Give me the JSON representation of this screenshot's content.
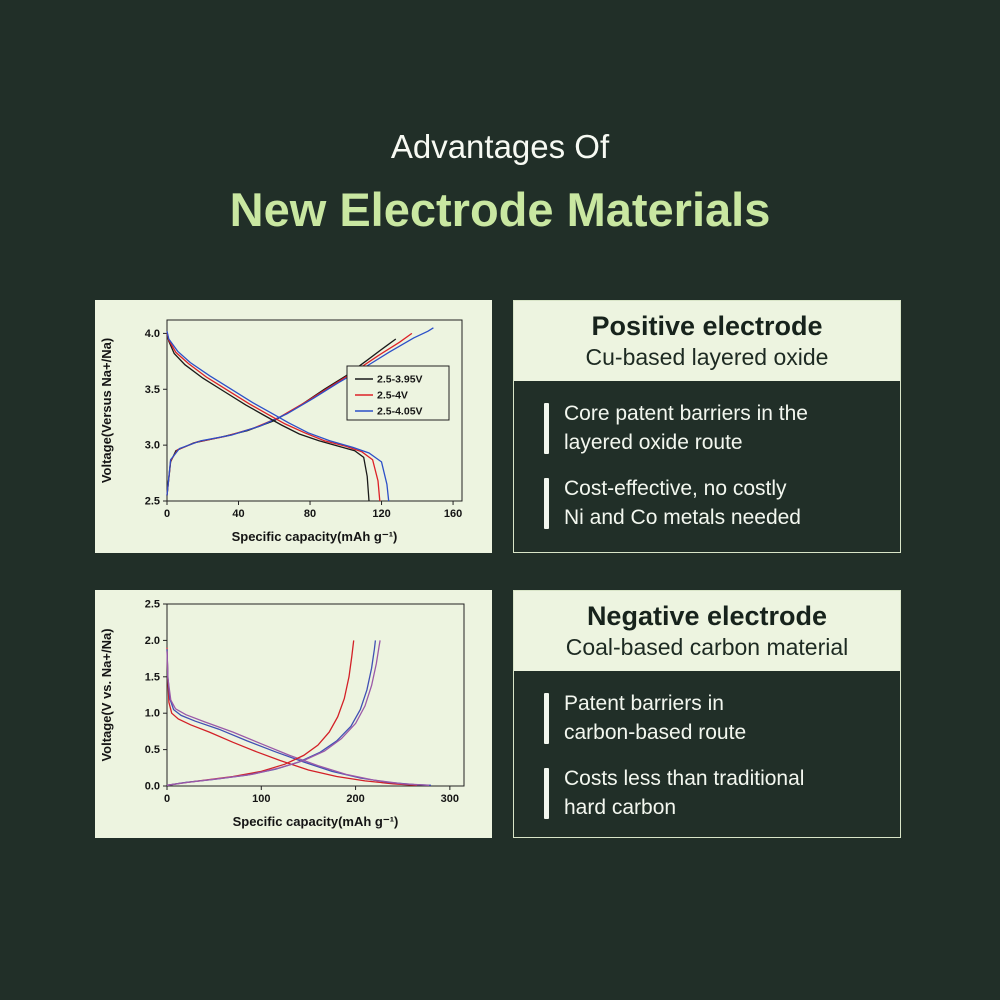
{
  "header": {
    "subtitle": "Advantages Of",
    "title": "New Electrode Materials"
  },
  "colors": {
    "background": "#212f28",
    "panel_cream": "#edf4e0",
    "accent_green": "#c9e7a1",
    "text_light": "#f3f7ef",
    "text_dark": "#17231c"
  },
  "positive": {
    "title": "Positive electrode",
    "subtitle": "Cu-based layered oxide",
    "bullets": [
      "Core patent barriers in the\nlayered oxide route",
      "Cost-effective, no costly\nNi and Co metals needed"
    ]
  },
  "negative": {
    "title": "Negative electrode",
    "subtitle": "Coal-based carbon material",
    "bullets": [
      "Patent barriers in\ncarbon-based route",
      "Costs less than traditional\nhard carbon"
    ]
  },
  "chart_data": [
    {
      "type": "line",
      "title": "",
      "xlabel": "Specific capacity(mAh g⁻¹)",
      "ylabel": "Voltage(Versus Na+/Na)",
      "xlim": [
        0,
        165
      ],
      "ylim": [
        2.5,
        4.12
      ],
      "grid": false,
      "legend_position": "center-right",
      "xticks": [
        {
          "v": 0,
          "label": "0"
        },
        {
          "v": 40,
          "label": "40"
        },
        {
          "v": 80,
          "label": "80"
        },
        {
          "v": 120,
          "label": "120"
        },
        {
          "v": 160,
          "label": "160"
        }
      ],
      "yticks": [
        {
          "v": 2.5,
          "label": "2.5"
        },
        {
          "v": 3.0,
          "label": "3.0"
        },
        {
          "v": 3.5,
          "label": "3.5"
        },
        {
          "v": 4.0,
          "label": "4.0"
        }
      ],
      "legend": [
        {
          "label": "2.5-3.95V",
          "color": "#1a1a1a"
        },
        {
          "label": "2.5-4V",
          "color": "#dd2127"
        },
        {
          "label": "2.5-4.05V",
          "color": "#2c50c8"
        }
      ],
      "series": [
        {
          "name": "2.5-3.95V-charge",
          "color": "#1a1a1a",
          "points": [
            [
              0,
              2.55
            ],
            [
              2,
              2.85
            ],
            [
              5,
              2.95
            ],
            [
              15,
              3.02
            ],
            [
              30,
              3.07
            ],
            [
              45,
              3.13
            ],
            [
              60,
              3.22
            ],
            [
              75,
              3.36
            ],
            [
              88,
              3.5
            ],
            [
              100,
              3.62
            ],
            [
              112,
              3.76
            ],
            [
              122,
              3.88
            ],
            [
              128,
              3.95
            ]
          ]
        },
        {
          "name": "2.5-4V-charge",
          "color": "#dd2127",
          "points": [
            [
              0,
              2.55
            ],
            [
              2,
              2.86
            ],
            [
              6,
              2.96
            ],
            [
              17,
              3.03
            ],
            [
              33,
              3.08
            ],
            [
              48,
              3.15
            ],
            [
              63,
              3.25
            ],
            [
              78,
              3.39
            ],
            [
              92,
              3.53
            ],
            [
              105,
              3.66
            ],
            [
              118,
              3.8
            ],
            [
              130,
              3.92
            ],
            [
              137,
              4.0
            ]
          ]
        },
        {
          "name": "2.5-4.05V-charge",
          "color": "#2c50c8",
          "points": [
            [
              0,
              2.55
            ],
            [
              2,
              2.87
            ],
            [
              7,
              2.97
            ],
            [
              19,
              3.04
            ],
            [
              36,
              3.09
            ],
            [
              52,
              3.17
            ],
            [
              67,
              3.28
            ],
            [
              82,
              3.42
            ],
            [
              96,
              3.56
            ],
            [
              110,
              3.69
            ],
            [
              124,
              3.83
            ],
            [
              138,
              3.96
            ],
            [
              146,
              4.02
            ],
            [
              149,
              4.05
            ]
          ]
        },
        {
          "name": "2.5-3.95V-discharge",
          "color": "#1a1a1a",
          "points": [
            [
              0,
              4.0
            ],
            [
              1,
              3.93
            ],
            [
              4,
              3.82
            ],
            [
              10,
              3.72
            ],
            [
              20,
              3.6
            ],
            [
              32,
              3.48
            ],
            [
              44,
              3.36
            ],
            [
              54,
              3.27
            ],
            [
              64,
              3.18
            ],
            [
              74,
              3.1
            ],
            [
              85,
              3.04
            ],
            [
              96,
              2.99
            ],
            [
              105,
              2.95
            ],
            [
              110,
              2.89
            ],
            [
              112,
              2.72
            ],
            [
              113,
              2.5
            ]
          ]
        },
        {
          "name": "2.5-4V-discharge",
          "color": "#dd2127",
          "points": [
            [
              0,
              4.01
            ],
            [
              1,
              3.94
            ],
            [
              5,
              3.83
            ],
            [
              12,
              3.73
            ],
            [
              22,
              3.61
            ],
            [
              34,
              3.49
            ],
            [
              46,
              3.37
            ],
            [
              56,
              3.28
            ],
            [
              66,
              3.19
            ],
            [
              77,
              3.11
            ],
            [
              88,
              3.04
            ],
            [
              100,
              2.99
            ],
            [
              109,
              2.94
            ],
            [
              115,
              2.87
            ],
            [
              118,
              2.68
            ],
            [
              119,
              2.5
            ]
          ]
        },
        {
          "name": "2.5-4.05V-discharge",
          "color": "#2c50c8",
          "points": [
            [
              0,
              4.02
            ],
            [
              1,
              3.95
            ],
            [
              6,
              3.84
            ],
            [
              13,
              3.74
            ],
            [
              24,
              3.62
            ],
            [
              36,
              3.5
            ],
            [
              48,
              3.38
            ],
            [
              58,
              3.29
            ],
            [
              68,
              3.2
            ],
            [
              79,
              3.11
            ],
            [
              91,
              3.04
            ],
            [
              104,
              2.98
            ],
            [
              113,
              2.93
            ],
            [
              120,
              2.85
            ],
            [
              123,
              2.65
            ],
            [
              124,
              2.5
            ]
          ]
        }
      ]
    },
    {
      "type": "line",
      "title": "",
      "xlabel": "Specific capacity(mAh g⁻¹)",
      "ylabel": "Voltage(V vs. Na+/Na)",
      "xlim": [
        0,
        315
      ],
      "ylim": [
        0,
        2.5
      ],
      "grid": false,
      "xticks": [
        {
          "v": 0,
          "label": "0"
        },
        {
          "v": 100,
          "label": "100"
        },
        {
          "v": 200,
          "label": "200"
        },
        {
          "v": 300,
          "label": "300"
        }
      ],
      "yticks": [
        {
          "v": 0.0,
          "label": "0.0"
        },
        {
          "v": 0.5,
          "label": "0.5"
        },
        {
          "v": 1.0,
          "label": "1.0"
        },
        {
          "v": 1.5,
          "label": "1.5"
        },
        {
          "v": 2.0,
          "label": "2.0"
        },
        {
          "v": 2.5,
          "label": "2.5"
        }
      ],
      "series": [
        {
          "name": "red-discharge",
          "color": "#d32027",
          "points": [
            [
              0,
              1.9
            ],
            [
              1,
              1.45
            ],
            [
              2,
              1.15
            ],
            [
              5,
              1.0
            ],
            [
              12,
              0.92
            ],
            [
              25,
              0.84
            ],
            [
              45,
              0.74
            ],
            [
              70,
              0.6
            ],
            [
              95,
              0.47
            ],
            [
              120,
              0.35
            ],
            [
              150,
              0.22
            ],
            [
              180,
              0.13
            ],
            [
              210,
              0.07
            ],
            [
              240,
              0.03
            ],
            [
              265,
              0.01
            ]
          ]
        },
        {
          "name": "blue-discharge",
          "color": "#4050b4",
          "points": [
            [
              0,
              1.88
            ],
            [
              1,
              1.5
            ],
            [
              3,
              1.2
            ],
            [
              7,
              1.05
            ],
            [
              15,
              0.97
            ],
            [
              30,
              0.89
            ],
            [
              55,
              0.78
            ],
            [
              85,
              0.62
            ],
            [
              115,
              0.47
            ],
            [
              145,
              0.33
            ],
            [
              175,
              0.2
            ],
            [
              205,
              0.11
            ],
            [
              235,
              0.05
            ],
            [
              262,
              0.02
            ],
            [
              280,
              0.01
            ]
          ]
        },
        {
          "name": "purple-discharge",
          "color": "#9b59a8",
          "points": [
            [
              0,
              1.85
            ],
            [
              1,
              1.48
            ],
            [
              4,
              1.18
            ],
            [
              9,
              1.06
            ],
            [
              20,
              0.98
            ],
            [
              40,
              0.88
            ],
            [
              70,
              0.74
            ],
            [
              100,
              0.58
            ],
            [
              130,
              0.42
            ],
            [
              160,
              0.28
            ],
            [
              190,
              0.16
            ],
            [
              220,
              0.08
            ],
            [
              250,
              0.03
            ],
            [
              278,
              0.01
            ]
          ]
        },
        {
          "name": "red-charge",
          "color": "#d32027",
          "points": [
            [
              0,
              0.01
            ],
            [
              15,
              0.04
            ],
            [
              40,
              0.08
            ],
            [
              70,
              0.13
            ],
            [
              100,
              0.2
            ],
            [
              125,
              0.3
            ],
            [
              145,
              0.42
            ],
            [
              160,
              0.56
            ],
            [
              172,
              0.74
            ],
            [
              181,
              0.95
            ],
            [
              188,
              1.2
            ],
            [
              193,
              1.5
            ],
            [
              196,
              1.78
            ],
            [
              198,
              2.0
            ]
          ]
        },
        {
          "name": "blue-charge",
          "color": "#4050b4",
          "points": [
            [
              0,
              0.01
            ],
            [
              20,
              0.05
            ],
            [
              50,
              0.09
            ],
            [
              85,
              0.15
            ],
            [
              115,
              0.23
            ],
            [
              140,
              0.33
            ],
            [
              162,
              0.46
            ],
            [
              180,
              0.62
            ],
            [
              195,
              0.82
            ],
            [
              205,
              1.05
            ],
            [
              212,
              1.32
            ],
            [
              217,
              1.62
            ],
            [
              220,
              1.88
            ],
            [
              221,
              2.0
            ]
          ]
        },
        {
          "name": "purple-charge",
          "color": "#9b59a8",
          "points": [
            [
              0,
              0.01
            ],
            [
              22,
              0.05
            ],
            [
              55,
              0.1
            ],
            [
              90,
              0.16
            ],
            [
              120,
              0.25
            ],
            [
              145,
              0.35
            ],
            [
              167,
              0.48
            ],
            [
              185,
              0.65
            ],
            [
              200,
              0.86
            ],
            [
              210,
              1.1
            ],
            [
              217,
              1.38
            ],
            [
              222,
              1.68
            ],
            [
              225,
              1.92
            ],
            [
              226,
              2.0
            ]
          ]
        }
      ]
    }
  ]
}
